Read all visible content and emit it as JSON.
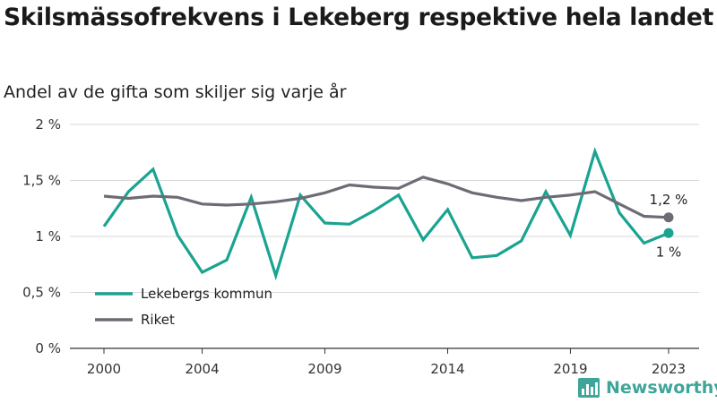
{
  "chart_title": "Skilsmässofrekvens i Lekeberg respektive hela landet",
  "chart_subtitle": "Andel av de gifta som skiljer sig varje år",
  "brand": {
    "name": "Newsworthy",
    "color": "#3fa59a",
    "icon": "bar-chart-icon"
  },
  "chart_data": {
    "type": "line",
    "x": [
      2000,
      2001,
      2002,
      2003,
      2004,
      2005,
      2006,
      2007,
      2008,
      2009,
      2010,
      2011,
      2012,
      2013,
      2014,
      2015,
      2016,
      2017,
      2018,
      2019,
      2020,
      2021,
      2022,
      2023
    ],
    "x_ticks": [
      2000,
      2004,
      2009,
      2014,
      2019,
      2023
    ],
    "x_tick_labels": [
      "2000",
      "2004",
      "2009",
      "2014",
      "2019",
      "2023"
    ],
    "xlim": [
      2000,
      2023
    ],
    "ylim": [
      0,
      2
    ],
    "y_ticks": [
      0,
      0.5,
      1,
      1.5,
      2
    ],
    "y_tick_labels": [
      "0 %",
      "0,5 %",
      "1 %",
      "1,5 %",
      "2 %"
    ],
    "grid": true,
    "legend_position": "bottom-left",
    "series": [
      {
        "name": "Lekebergs kommun",
        "color": "#1aa391",
        "values": [
          1.09,
          1.4,
          1.6,
          1.01,
          0.68,
          0.79,
          1.35,
          0.65,
          1.37,
          1.12,
          1.11,
          1.23,
          1.37,
          0.97,
          1.24,
          0.81,
          0.83,
          0.96,
          1.4,
          1.01,
          1.76,
          1.21,
          0.94,
          1.03
        ],
        "end_label": "1 %"
      },
      {
        "name": "Riket",
        "color": "#6e6b75",
        "values": [
          1.36,
          1.34,
          1.36,
          1.35,
          1.29,
          1.28,
          1.29,
          1.31,
          1.34,
          1.39,
          1.46,
          1.44,
          1.43,
          1.53,
          1.47,
          1.39,
          1.35,
          1.32,
          1.35,
          1.37,
          1.4,
          1.29,
          1.18,
          1.17
        ],
        "end_label": "1,2 %"
      }
    ]
  }
}
